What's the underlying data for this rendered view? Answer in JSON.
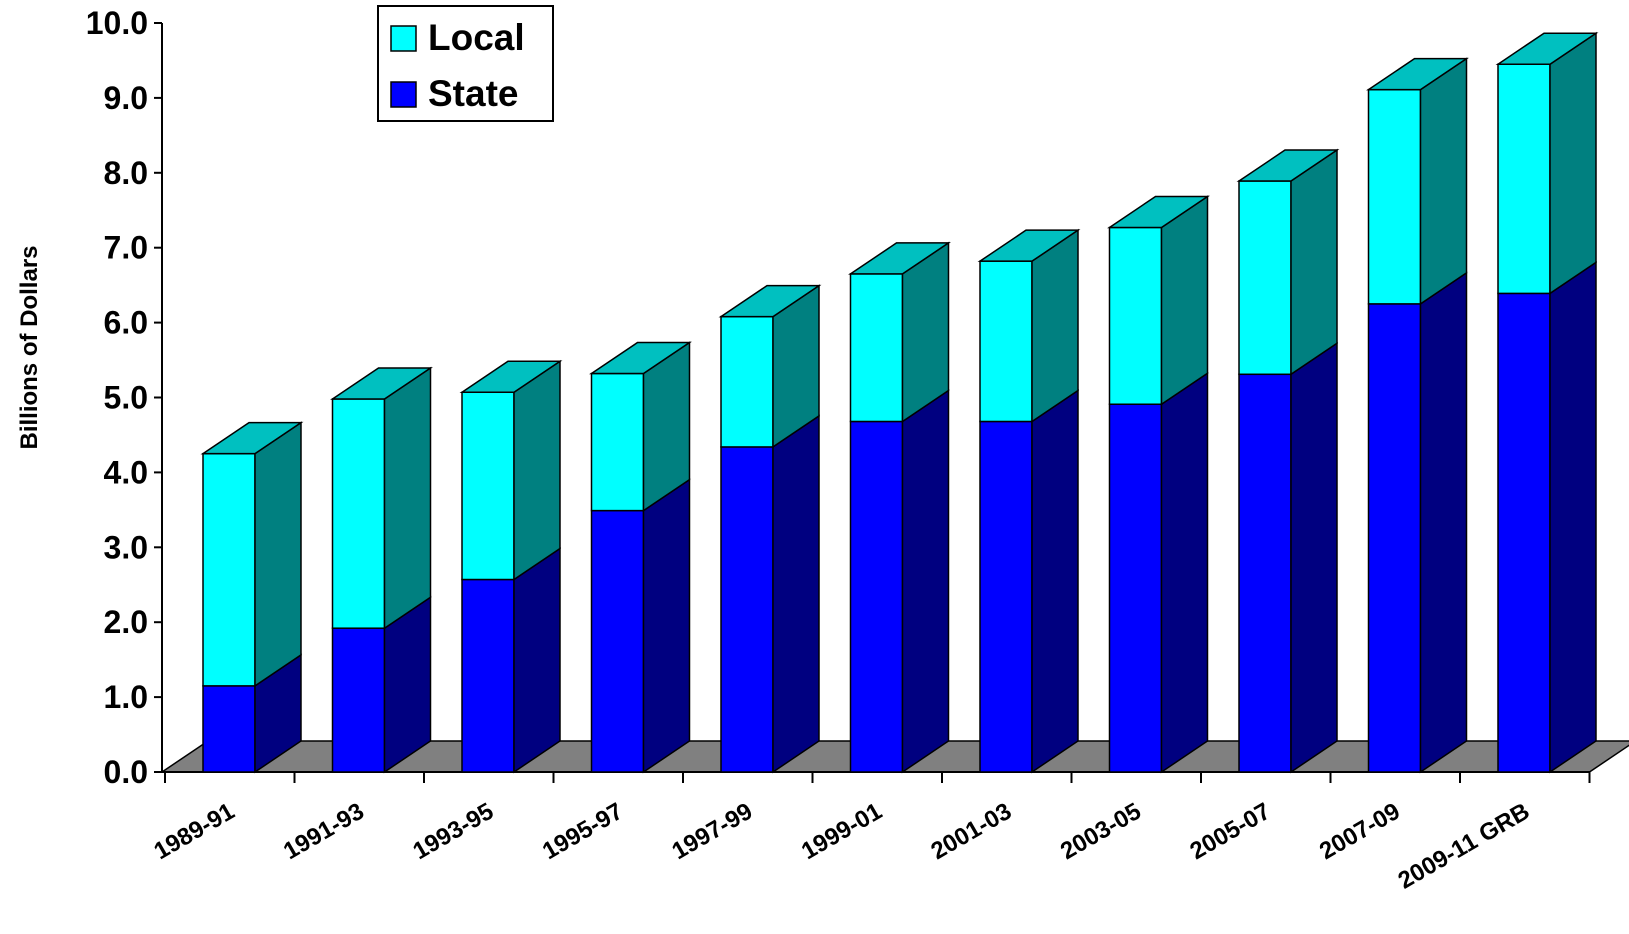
{
  "chart_data": {
    "type": "bar",
    "stacked": true,
    "three_d": true,
    "ylabel": "Billions of Dollars",
    "xlabel": "",
    "ylim": [
      0,
      10
    ],
    "y_ticks": [
      "0.0",
      "1.0",
      "2.0",
      "3.0",
      "4.0",
      "5.0",
      "6.0",
      "7.0",
      "8.0",
      "9.0",
      "10.0"
    ],
    "legend_position": "top-left",
    "categories": [
      "1989-91",
      "1991-93",
      "1993-95",
      "1995-97",
      "1997-99",
      "1999-01",
      "2001-03",
      "2003-05",
      "2005-07",
      "2007-09",
      "2009-11 GRB"
    ],
    "series": [
      {
        "name": "State",
        "color": "#0000ff",
        "side_color": "#000080",
        "values": [
          1.15,
          1.92,
          2.57,
          3.49,
          4.34,
          4.68,
          4.68,
          4.91,
          5.31,
          6.25,
          6.39
        ]
      },
      {
        "name": "Local",
        "color": "#00ffff",
        "side_color": "#008080",
        "top_color": "#00c0c0",
        "values": [
          3.1,
          3.06,
          2.5,
          1.83,
          1.74,
          1.97,
          2.14,
          2.36,
          2.58,
          2.86,
          3.06
        ]
      }
    ],
    "floor_color": "#808080",
    "grid": false
  }
}
